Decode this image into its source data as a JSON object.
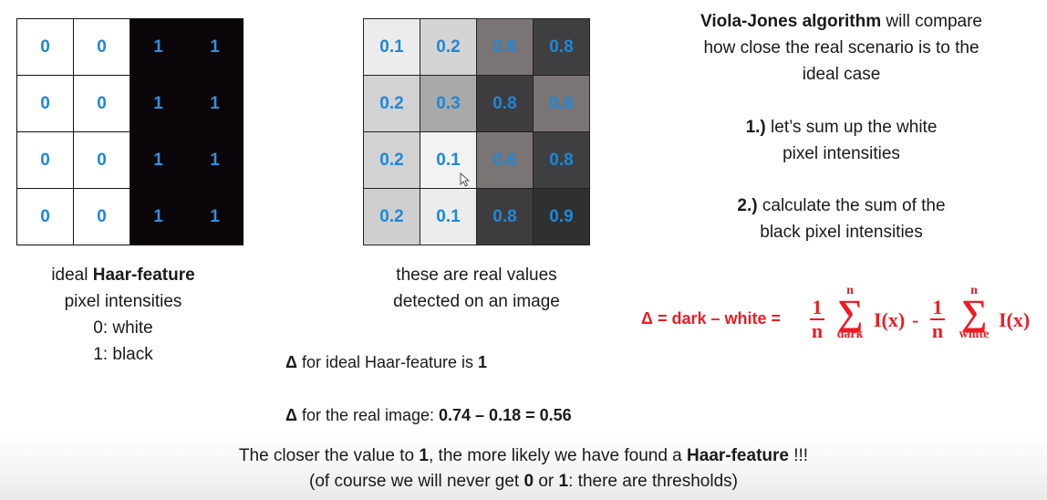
{
  "ideal_grid": {
    "rows": [
      [
        "0",
        "0",
        "1",
        "1"
      ],
      [
        "0",
        "0",
        "1",
        "1"
      ],
      [
        "0",
        "0",
        "1",
        "1"
      ],
      [
        "0",
        "0",
        "1",
        "1"
      ]
    ]
  },
  "ideal_caption": {
    "line1_prefix": "ideal ",
    "line1_bold": "Haar-feature",
    "line2": "pixel intensities",
    "line3": "0: white",
    "line4": "1: black"
  },
  "real_grid": {
    "rows": [
      [
        "0.1",
        "0.2",
        "0.6",
        "0.8"
      ],
      [
        "0.2",
        "0.3",
        "0.8",
        "0.6"
      ],
      [
        "0.2",
        "0.1",
        "0.6",
        "0.8"
      ],
      [
        "0.2",
        "0.1",
        "0.8",
        "0.9"
      ]
    ],
    "colors": [
      [
        "#ececec",
        "#d4d4d4",
        "#7a7474",
        "#3f3f41"
      ],
      [
        "#d2d2d2",
        "#a9a9a9",
        "#3e3c3e",
        "#7a7474"
      ],
      [
        "#d2d2d2",
        "#f2f2f2",
        "#7a7474",
        "#3f3f41"
      ],
      [
        "#cfcfcf",
        "#ececec",
        "#3e3c3e",
        "#303031"
      ]
    ]
  },
  "real_caption": {
    "line1": "these are real values",
    "line2": "detected on an image"
  },
  "intro": {
    "bold": "Viola-Jones algorithm",
    "rest1": " will compare",
    "line2": "how close the real scenario is to the",
    "line3": "ideal case"
  },
  "step1": {
    "num": "1.)",
    "text1": " let’s sum up the white",
    "text2": "pixel intensities"
  },
  "step2": {
    "num": "2.)",
    "text1": " calculate the sum of the",
    "text2": "black pixel intensities"
  },
  "formula": {
    "lhs": "Δ = dark – white =",
    "one": "1",
    "n": "n",
    "sigma": "∑",
    "upper": "n",
    "sub_dark": "dark",
    "sub_white": "white",
    "term": "I(x)",
    "minus": "-"
  },
  "delta_ideal": {
    "prefix": "Δ",
    "text": " for ideal Haar-feature is ",
    "value": "1"
  },
  "delta_real": {
    "prefix": "Δ",
    "text": " for the real image: ",
    "value": "0.74 – 0.18 = 0.56"
  },
  "bottom": {
    "l1_a": "The closer the value to ",
    "l1_b": "1",
    "l1_c": ", the more likely we have found a ",
    "l1_d": "Haar-feature",
    "l1_e": " !!!",
    "l2_a": "(of course we will never get ",
    "l2_b": "0",
    "l2_c": " or ",
    "l2_d": "1",
    "l2_e": ": there are thresholds)"
  },
  "colors": {
    "value_text": "#1e88d8",
    "formula": "#ee1b24"
  }
}
